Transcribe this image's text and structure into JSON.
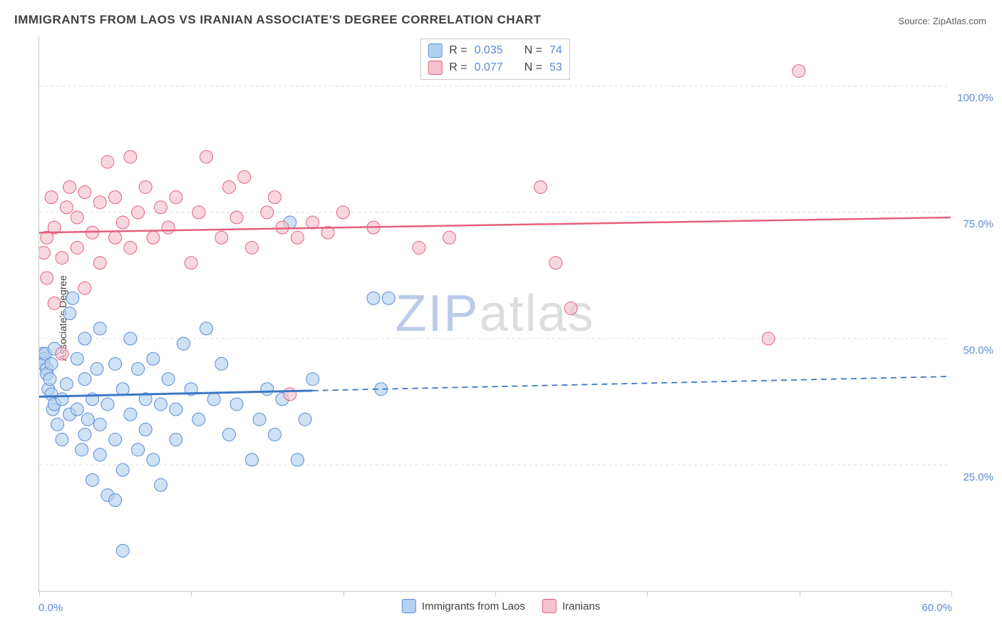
{
  "title": "IMMIGRANTS FROM LAOS VS IRANIAN ASSOCIATE'S DEGREE CORRELATION CHART",
  "source": "Source: ZipAtlas.com",
  "y_axis_label": "Associate's Degree",
  "watermark": {
    "zip": "ZIP",
    "atlas": "atlas"
  },
  "chart": {
    "type": "scatter",
    "xlim": [
      0,
      60
    ],
    "ylim": [
      0,
      110
    ],
    "x_min_label": "0.0%",
    "x_max_label": "60.0%",
    "x_ticks": [
      0,
      10,
      20,
      30,
      40,
      50,
      60
    ],
    "y_gridlines": [
      {
        "value": 25,
        "label": "25.0%"
      },
      {
        "value": 50,
        "label": "50.0%"
      },
      {
        "value": 75,
        "label": "75.0%"
      },
      {
        "value": 100,
        "label": "100.0%"
      }
    ],
    "background_color": "#ffffff",
    "grid_color": "#dcdcdc",
    "axis_color": "#c8c8c8",
    "y_tick_label_color": "#5b8bd4",
    "series": [
      {
        "name": "Immigrants from Laos",
        "marker_fill": "#b3d1f0",
        "marker_stroke": "#5b8bd4",
        "marker_opacity": 0.65,
        "marker_radius": 9,
        "trend_color": "#3b78c4",
        "trend_width": 3,
        "trend_y_start": 38.5,
        "trend_y_end": 42.5,
        "trend_solid_x_end": 18,
        "R": "0.035",
        "N": "74",
        "points": [
          [
            0.2,
            47
          ],
          [
            0.3,
            46
          ],
          [
            0.3,
            45
          ],
          [
            0.4,
            47
          ],
          [
            0.5,
            44
          ],
          [
            0.5,
            43
          ],
          [
            0.6,
            40
          ],
          [
            0.7,
            42
          ],
          [
            0.8,
            45
          ],
          [
            0.8,
            39
          ],
          [
            0.9,
            36
          ],
          [
            1.0,
            48
          ],
          [
            1.0,
            37
          ],
          [
            1.2,
            33
          ],
          [
            1.5,
            38
          ],
          [
            1.5,
            30
          ],
          [
            1.8,
            41
          ],
          [
            2.0,
            35
          ],
          [
            2.0,
            55
          ],
          [
            2.2,
            58
          ],
          [
            2.5,
            46
          ],
          [
            2.5,
            36
          ],
          [
            2.8,
            28
          ],
          [
            3.0,
            50
          ],
          [
            3.0,
            42
          ],
          [
            3.0,
            31
          ],
          [
            3.2,
            34
          ],
          [
            3.5,
            38
          ],
          [
            3.5,
            22
          ],
          [
            3.8,
            44
          ],
          [
            4.0,
            52
          ],
          [
            4.0,
            33
          ],
          [
            4.0,
            27
          ],
          [
            4.5,
            37
          ],
          [
            4.5,
            19
          ],
          [
            5.0,
            45
          ],
          [
            5.0,
            30
          ],
          [
            5.0,
            18
          ],
          [
            5.5,
            40
          ],
          [
            5.5,
            24
          ],
          [
            5.5,
            8
          ],
          [
            6.0,
            50
          ],
          [
            6.0,
            35
          ],
          [
            6.5,
            44
          ],
          [
            6.5,
            28
          ],
          [
            7.0,
            38
          ],
          [
            7.0,
            32
          ],
          [
            7.5,
            46
          ],
          [
            7.5,
            26
          ],
          [
            8.0,
            37
          ],
          [
            8.0,
            21
          ],
          [
            8.5,
            42
          ],
          [
            9.0,
            36
          ],
          [
            9.0,
            30
          ],
          [
            9.5,
            49
          ],
          [
            10.0,
            40
          ],
          [
            10.5,
            34
          ],
          [
            11.0,
            52
          ],
          [
            11.5,
            38
          ],
          [
            12.0,
            45
          ],
          [
            12.5,
            31
          ],
          [
            13.0,
            37
          ],
          [
            14.0,
            26
          ],
          [
            14.5,
            34
          ],
          [
            15.0,
            40
          ],
          [
            15.5,
            31
          ],
          [
            16.0,
            38
          ],
          [
            16.5,
            73
          ],
          [
            17.0,
            26
          ],
          [
            17.5,
            34
          ],
          [
            18.0,
            42
          ],
          [
            22.0,
            58
          ],
          [
            22.5,
            40
          ],
          [
            23.0,
            58
          ]
        ]
      },
      {
        "name": "Iranians",
        "marker_fill": "#f5c1cf",
        "marker_stroke": "#e5607d",
        "marker_opacity": 0.65,
        "marker_radius": 9,
        "trend_color": "#e5607d",
        "trend_width": 2.5,
        "trend_y_start": 71.0,
        "trend_y_end": 74.0,
        "trend_solid_x_end": 60,
        "R": "0.077",
        "N": "53",
        "points": [
          [
            0.3,
            67
          ],
          [
            0.5,
            70
          ],
          [
            0.5,
            62
          ],
          [
            0.8,
            78
          ],
          [
            1.0,
            72
          ],
          [
            1.0,
            57
          ],
          [
            1.5,
            66
          ],
          [
            1.5,
            47
          ],
          [
            1.8,
            76
          ],
          [
            2.0,
            80
          ],
          [
            2.5,
            68
          ],
          [
            2.5,
            74
          ],
          [
            3.0,
            79
          ],
          [
            3.0,
            60
          ],
          [
            3.5,
            71
          ],
          [
            4.0,
            77
          ],
          [
            4.0,
            65
          ],
          [
            4.5,
            85
          ],
          [
            5.0,
            70
          ],
          [
            5.0,
            78
          ],
          [
            5.5,
            73
          ],
          [
            6.0,
            86
          ],
          [
            6.0,
            68
          ],
          [
            6.5,
            75
          ],
          [
            7.0,
            80
          ],
          [
            7.5,
            70
          ],
          [
            8.0,
            76
          ],
          [
            8.5,
            72
          ],
          [
            9.0,
            78
          ],
          [
            10.0,
            65
          ],
          [
            10.5,
            75
          ],
          [
            11.0,
            86
          ],
          [
            12.0,
            70
          ],
          [
            12.5,
            80
          ],
          [
            13.0,
            74
          ],
          [
            13.5,
            82
          ],
          [
            14.0,
            68
          ],
          [
            15.0,
            75
          ],
          [
            15.5,
            78
          ],
          [
            16.0,
            72
          ],
          [
            16.5,
            39
          ],
          [
            17.0,
            70
          ],
          [
            18.0,
            73
          ],
          [
            19.0,
            71
          ],
          [
            20.0,
            75
          ],
          [
            22.0,
            72
          ],
          [
            25.0,
            68
          ],
          [
            27.0,
            70
          ],
          [
            33.0,
            80
          ],
          [
            34.0,
            65
          ],
          [
            35.0,
            56
          ],
          [
            48.0,
            50
          ],
          [
            50.0,
            103
          ]
        ]
      }
    ],
    "legend": {
      "top": {
        "R_label": "R =",
        "N_label": "N ="
      },
      "bottom": [
        {
          "label": "Immigrants from Laos",
          "fill": "#b3d1f0",
          "stroke": "#5b8bd4"
        },
        {
          "label": "Iranians",
          "fill": "#f5c1cf",
          "stroke": "#e5607d"
        }
      ]
    }
  }
}
